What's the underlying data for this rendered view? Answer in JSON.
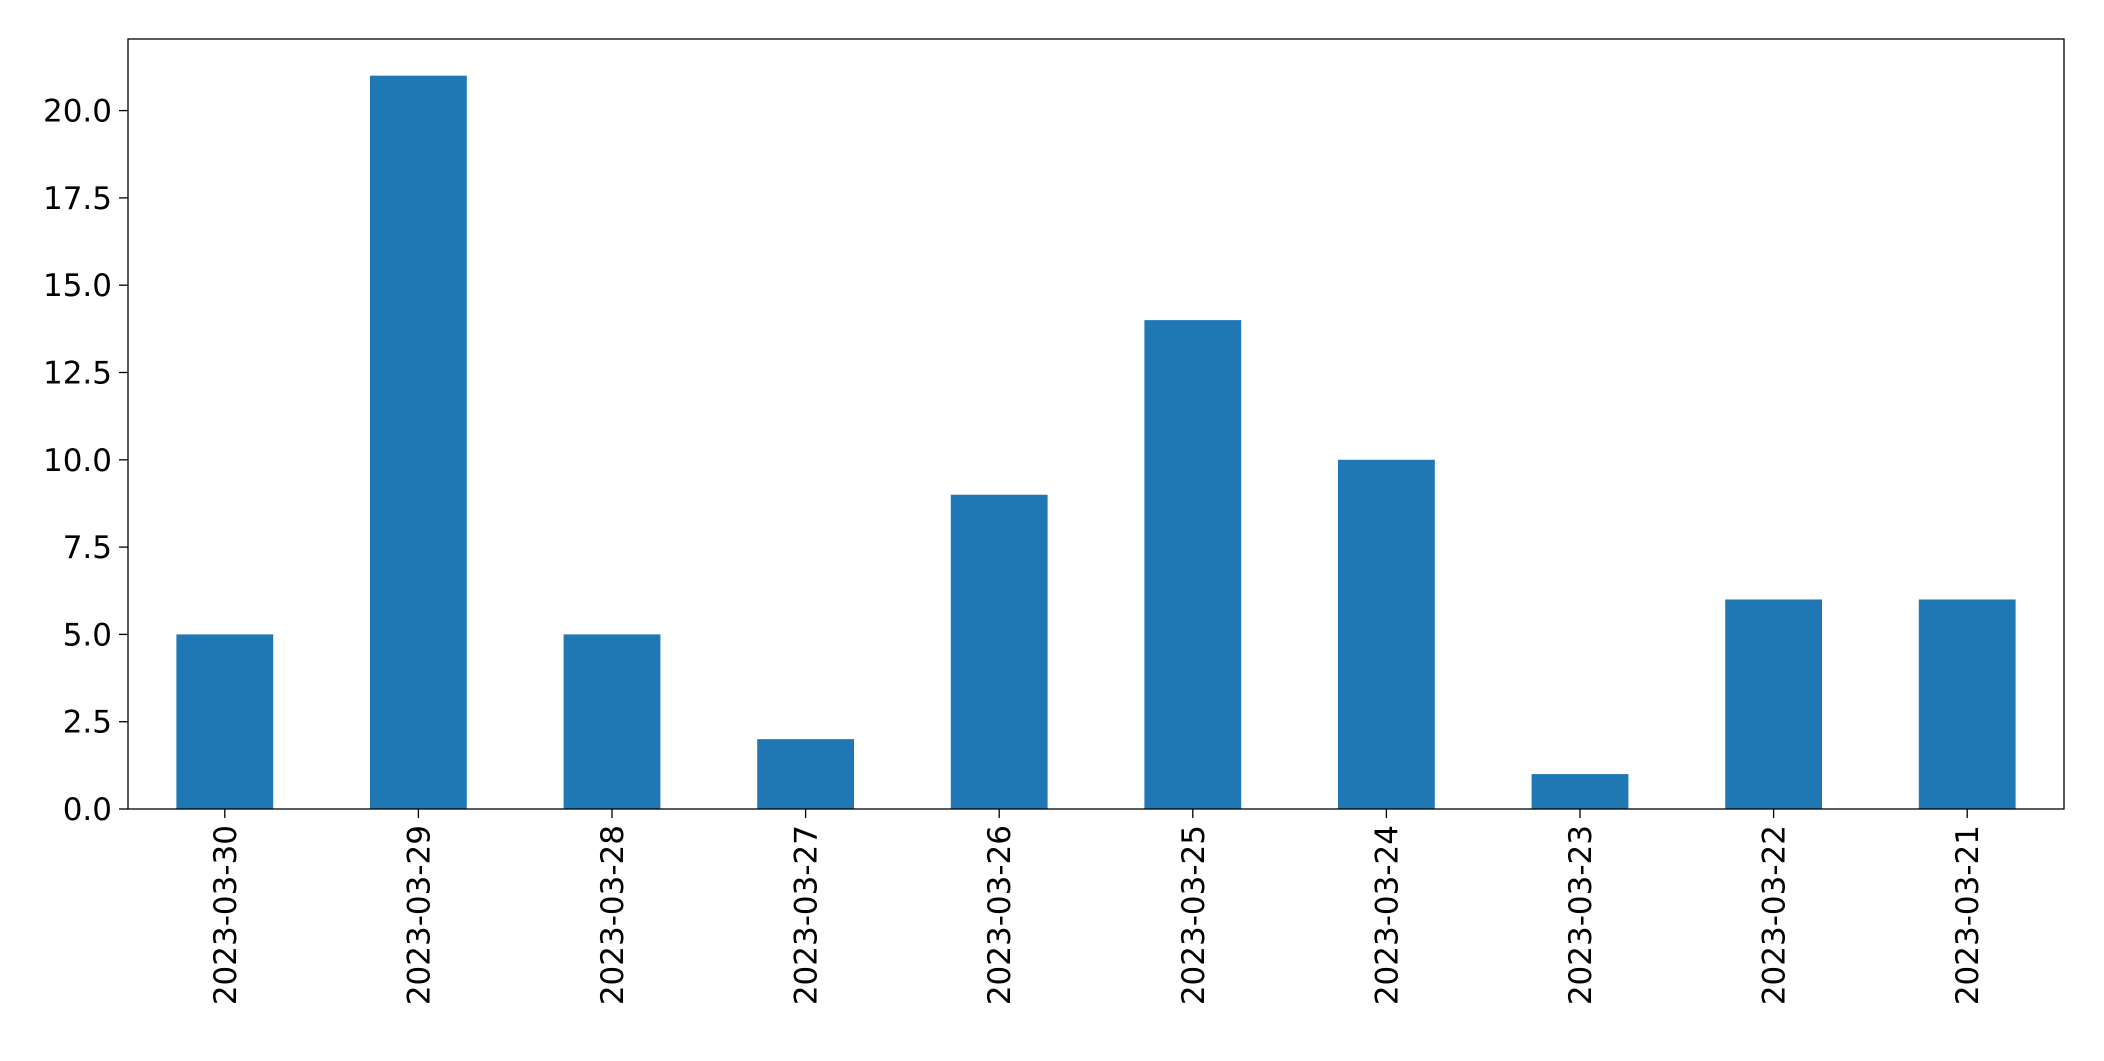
{
  "chart_data": {
    "type": "bar",
    "categories": [
      "2023-03-30",
      "2023-03-29",
      "2023-03-28",
      "2023-03-27",
      "2023-03-26",
      "2023-03-25",
      "2023-03-24",
      "2023-03-23",
      "2023-03-22",
      "2023-03-21"
    ],
    "values": [
      5,
      21,
      5,
      2,
      9,
      14,
      10,
      1,
      6,
      6
    ],
    "color": "#1f77b4",
    "ylim": [
      0,
      22.05
    ],
    "yticks": [
      {
        "value": 0,
        "label": "0.0"
      },
      2.5,
      {
        "value": 5,
        "label": "5.0"
      },
      7.5,
      {
        "value": 10,
        "label": "10.0"
      },
      12.5,
      {
        "value": 15,
        "label": "15.0"
      },
      17.5,
      {
        "value": 20,
        "label": "20.0"
      }
    ],
    "grid": false
  }
}
